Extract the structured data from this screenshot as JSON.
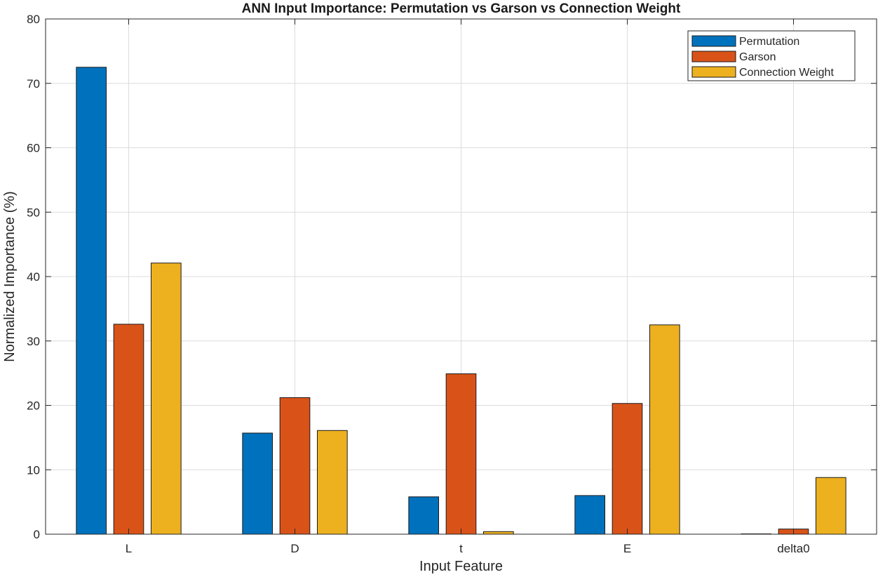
{
  "chart_data": {
    "type": "bar",
    "title": "ANN Input Importance: Permutation vs Garson vs Connection Weight",
    "xlabel": "Input Feature",
    "ylabel": "Normalized Importance (%)",
    "categories": [
      "L",
      "D",
      "t",
      "E",
      "delta0"
    ],
    "ylim": [
      0,
      80
    ],
    "yticks": [
      0,
      10,
      20,
      30,
      40,
      50,
      60,
      70,
      80
    ],
    "grid": true,
    "legend_position": "top-right",
    "series": [
      {
        "name": "Permutation",
        "color": "#0072BD",
        "values": [
          72.5,
          15.7,
          5.8,
          6.0,
          0.05
        ]
      },
      {
        "name": "Garson",
        "color": "#D95319",
        "values": [
          32.6,
          21.2,
          24.9,
          20.3,
          0.8
        ]
      },
      {
        "name": "Connection Weight",
        "color": "#EDB120",
        "values": [
          42.1,
          16.1,
          0.4,
          32.5,
          8.8
        ]
      }
    ]
  }
}
